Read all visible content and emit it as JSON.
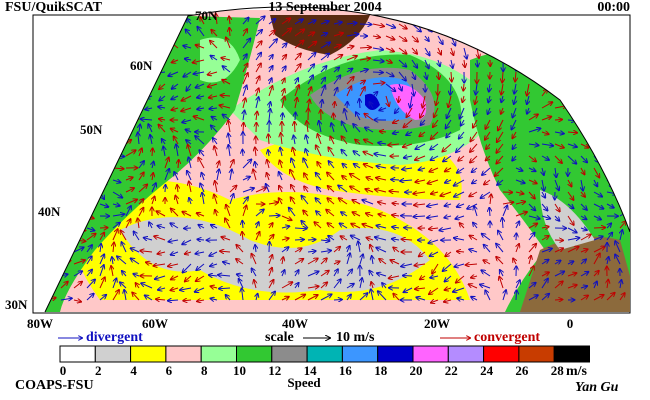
{
  "header": {
    "source": "FSU/QuikSCAT",
    "date": "13 September 2004",
    "time": "00:00"
  },
  "map": {
    "lat_labels": [
      "70N",
      "60N",
      "50N",
      "40N",
      "30N"
    ],
    "lon_labels": [
      "80W",
      "60W",
      "40W",
      "20W",
      "0"
    ]
  },
  "legend": {
    "divergent": "divergent",
    "scale": "scale",
    "scale_value": "10 m/s",
    "convergent": "convergent"
  },
  "colorbar": {
    "ticks": [
      0,
      2,
      4,
      6,
      8,
      10,
      12,
      14,
      16,
      18,
      20,
      22,
      24,
      26,
      28
    ],
    "unit": "m/s",
    "title": "Speed",
    "colors": [
      "#ffffff",
      "#d0d0d0",
      "#ffff00",
      "#ffc8c8",
      "#96ff96",
      "#32c832",
      "#8c8c8c",
      "#00b4b4",
      "#3c96ff",
      "#0000c8",
      "#ff64ff",
      "#b48cff",
      "#ff0000",
      "#c83c00",
      "#000000"
    ]
  },
  "footer": {
    "org": "COAPS-FSU",
    "author": "Yan Gu"
  }
}
